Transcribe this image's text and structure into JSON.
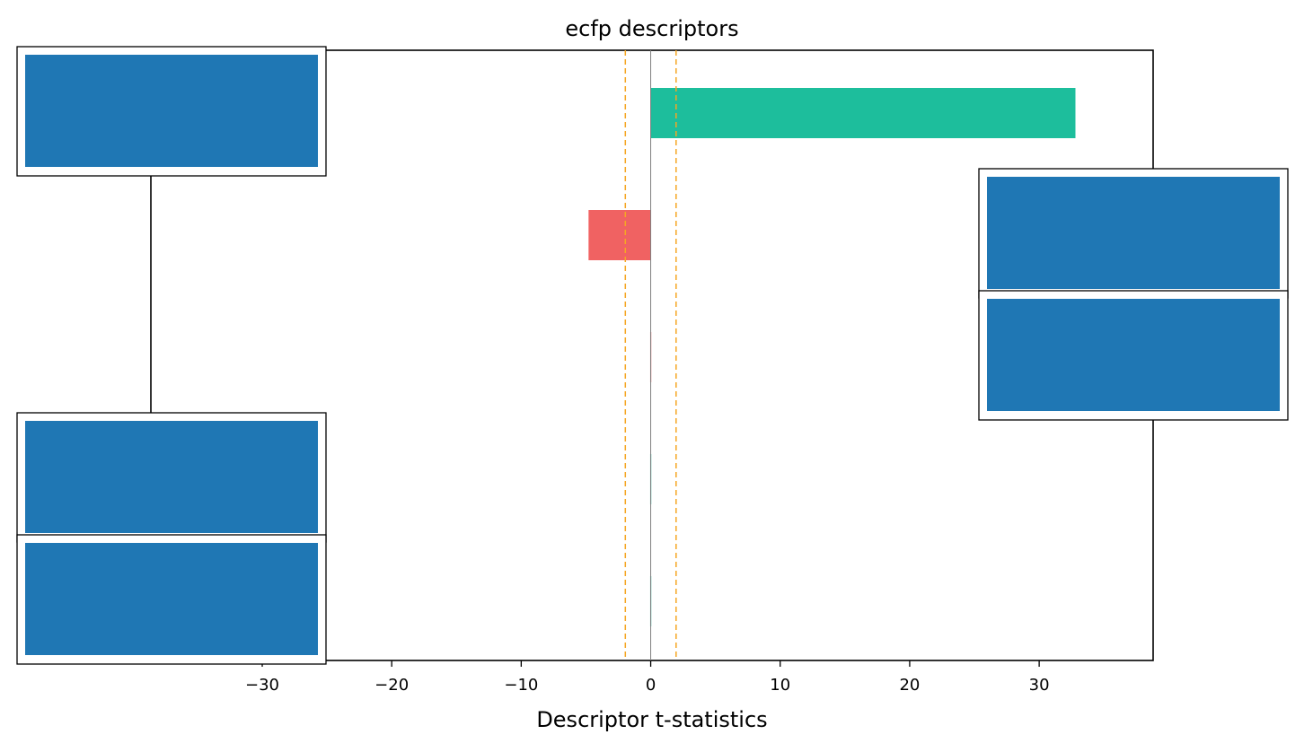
{
  "chart_data": {
    "type": "bar",
    "orientation": "horizontal",
    "title": "ecfp descriptors",
    "xlabel": "Descriptor t-statistics",
    "ylabel": "",
    "xlim": [
      -38.6,
      38.8
    ],
    "xticks": [
      -30,
      -20,
      -10,
      0,
      10,
      20,
      30
    ],
    "xtick_labels": [
      "−30",
      "−20",
      "−10",
      "0",
      "10",
      "20",
      "30"
    ],
    "significance_threshold": 1.96,
    "grid": false,
    "values": [
      32.8,
      -4.8,
      -0.05,
      0.05,
      0.05
    ],
    "bar_colors": [
      "#1dbe9c",
      "#f06262",
      "#f06262",
      "#1dbe9c",
      "#1dbe9c"
    ],
    "colors": {
      "positive": "#1dbe9c",
      "negative": "#f06262",
      "threshold_line": "#f5a623",
      "zero_line": "#808080",
      "image_placeholder": "#1f77b4"
    },
    "image_placeholders": 5
  }
}
